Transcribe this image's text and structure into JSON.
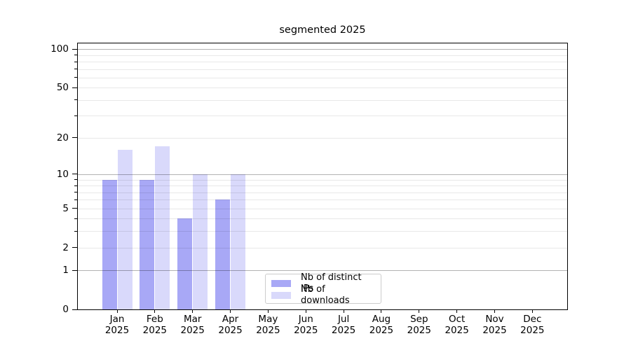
{
  "chart_data": {
    "type": "bar",
    "title": "segmented 2025",
    "categories": [
      "Jan",
      "Feb",
      "Mar",
      "Apr",
      "May",
      "Jun",
      "Jul",
      "Aug",
      "Sep",
      "Oct",
      "Nov",
      "Dec"
    ],
    "tick_year": "2025",
    "series": [
      {
        "name": "Nb of distinct IPs",
        "color": "#a8a8f6",
        "values": [
          9,
          9,
          4,
          6,
          0,
          0,
          0,
          0,
          0,
          0,
          0,
          0
        ]
      },
      {
        "name": "Nb of downloads",
        "color": "#d9d9fb",
        "values": [
          16,
          17,
          10,
          10,
          0,
          0,
          0,
          0,
          0,
          0,
          0,
          0
        ]
      }
    ],
    "yscale": "log10(value+1)",
    "ylim": [
      0,
      111
    ],
    "ytick_values": [
      0,
      1,
      2,
      5,
      10,
      20,
      50,
      100
    ],
    "ytick_labels": [
      "0",
      "1",
      "2",
      "5",
      "10",
      "20",
      "50",
      "100"
    ],
    "grid_major_values": [
      1,
      10,
      100
    ],
    "grid_minor_values": [
      2,
      3,
      4,
      5,
      6,
      7,
      8,
      9,
      20,
      30,
      40,
      50,
      60,
      70,
      80,
      90
    ],
    "grid": "on",
    "legend_position": "lower center",
    "xlabel": "",
    "ylabel": ""
  },
  "colors": {
    "axis": "#000000",
    "grid_major": "#b3b3b3",
    "grid_minor": "#e8e8e8",
    "legend_border": "#cccccc",
    "background": "#ffffff"
  }
}
